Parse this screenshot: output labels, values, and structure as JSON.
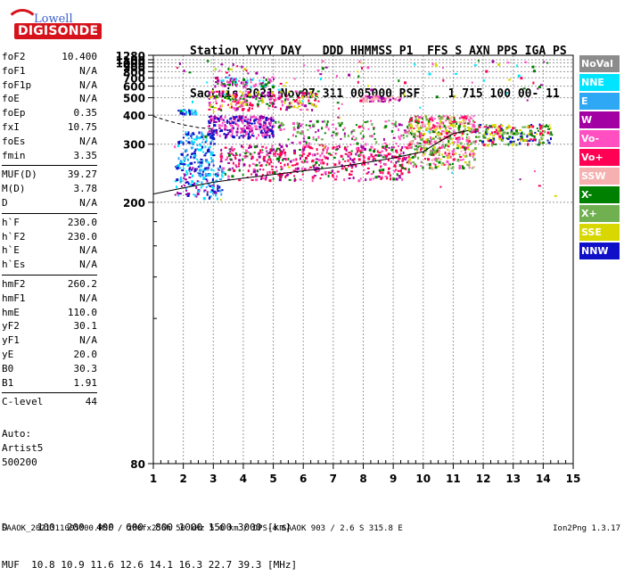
{
  "logo": {
    "line1": "Lowell",
    "line2": "DIGISONDE"
  },
  "header": {
    "line1": "Station YYYY DAY   DDD HHMMSS P1  FFS S AXN PPS IGA PS",
    "line2": "SaoLuis 2021 Nov07 311 005000 RSF    1 715 100 00- 11"
  },
  "params": [
    {
      "label": "foF2",
      "value": "10.400"
    },
    {
      "label": "foF1",
      "value": "N/A"
    },
    {
      "label": "foF1p",
      "value": "N/A"
    },
    {
      "label": "foE",
      "value": "N/A"
    },
    {
      "label": "foEp",
      "value": "0.35"
    },
    {
      "label": "fxI",
      "value": "10.75"
    },
    {
      "label": "foEs",
      "value": "N/A"
    },
    {
      "label": "fmin",
      "value": "3.35"
    },
    {
      "sep": true
    },
    {
      "label": "MUF(D)",
      "value": "39.27"
    },
    {
      "label": "M(D)",
      "value": "3.78"
    },
    {
      "label": "D",
      "value": "N/A"
    },
    {
      "sep": true
    },
    {
      "label": "h`F",
      "value": "230.0"
    },
    {
      "label": "h`F2",
      "value": "230.0"
    },
    {
      "label": "h`E",
      "value": "N/A"
    },
    {
      "label": "h`Es",
      "value": "N/A"
    },
    {
      "sep": true
    },
    {
      "label": "hmF2",
      "value": "260.2"
    },
    {
      "label": "hmF1",
      "value": "N/A"
    },
    {
      "label": "hmE",
      "value": "110.0"
    },
    {
      "label": "yF2",
      "value": "30.1"
    },
    {
      "label": "yF1",
      "value": "N/A"
    },
    {
      "label": "yE",
      "value": "20.0"
    },
    {
      "label": "B0",
      "value": "30.3"
    },
    {
      "label": "B1",
      "value": "1.91"
    },
    {
      "sep": true
    },
    {
      "label": "C-level",
      "value": "44"
    }
  ],
  "auto": {
    "line1": "Auto:",
    "line2": "Artist5",
    "line3": "500200"
  },
  "legend": [
    {
      "label": "NoVal",
      "color": "#8c8c8c"
    },
    {
      "label": "NNE",
      "color": "#00e5ff"
    },
    {
      "label": "E",
      "color": "#2ea8f5"
    },
    {
      "label": "W",
      "color": "#a300a3"
    },
    {
      "label": "Vo-",
      "color": "#ff4fc0"
    },
    {
      "label": "Vo+",
      "color": "#ff0055"
    },
    {
      "label": "SSW",
      "color": "#f5b0b0"
    },
    {
      "label": "X-",
      "color": "#008000"
    },
    {
      "label": "X+",
      "color": "#70b050"
    },
    {
      "label": "SSE",
      "color": "#d8d800"
    },
    {
      "label": "NNW",
      "color": "#1010c8"
    }
  ],
  "footer": {
    "line1": "D     100  200  400  600  800 1000 1500 3000 [km]",
    "line2": "MUF  10.8 10.9 11.6 12.6 14.1 16.3 22.7 39.3 [MHz]"
  },
  "fileline": "SAAOK_2021311005000.RSF / 280fx256h 50 kHz 5.0 km / DPS-4 SAAOK 903 / 2.6 S 315.8 E",
  "version": "Ion2Png 1.3.17",
  "chart_data": {
    "type": "scatter",
    "xlim": [
      1,
      15
    ],
    "ylim": [
      80,
      1280
    ],
    "yscale": "reciprocal",
    "x_ticks": [
      "1",
      "2",
      "3",
      "4",
      "5",
      "6",
      "7",
      "8",
      "9",
      "10",
      "11",
      "12",
      "13",
      "14",
      "15"
    ],
    "y_ticks": [
      "80",
      "200",
      "300",
      "400",
      "500",
      "600",
      "700",
      "800",
      "900",
      "1000",
      "1100",
      "1280"
    ],
    "grid": true,
    "clusters": [
      {
        "x": [
          1.7,
          3.3
        ],
        "y": [
          205,
          255
        ],
        "n": 160,
        "colors": [
          "#1010c8",
          "#00e5ff",
          "#2ea8f5",
          "#a300a3"
        ]
      },
      {
        "x": [
          1.8,
          3.0
        ],
        "y": [
          255,
          340
        ],
        "n": 140,
        "colors": [
          "#00e5ff",
          "#2ea8f5",
          "#1010c8"
        ]
      },
      {
        "x": [
          1.8,
          2.4
        ],
        "y": [
          410,
          430
        ],
        "n": 30,
        "colors": [
          "#2ea8f5",
          "#00e5ff",
          "#1010c8"
        ]
      },
      {
        "x": [
          2.8,
          5.0
        ],
        "y": [
          320,
          400
        ],
        "n": 260,
        "colors": [
          "#a300a3",
          "#ff4fc0",
          "#1010c8"
        ]
      },
      {
        "x": [
          3.2,
          9.5
        ],
        "y": [
          230,
          300
        ],
        "n": 520,
        "colors": [
          "#ff0055",
          "#ff4fc0",
          "#a300a3",
          "#008000",
          "#ff0055"
        ]
      },
      {
        "x": [
          2.8,
          6.5
        ],
        "y": [
          430,
          560
        ],
        "n": 240,
        "colors": [
          "#ff4fc0",
          "#a300a3",
          "#ff0055",
          "#008000",
          "#d8d800"
        ]
      },
      {
        "x": [
          3.0,
          5.0
        ],
        "y": [
          600,
          720
        ],
        "n": 80,
        "colors": [
          "#ff4fc0",
          "#a300a3",
          "#008000",
          "#00e5ff"
        ]
      },
      {
        "x": [
          5.0,
          9.5
        ],
        "y": [
          300,
          380
        ],
        "n": 140,
        "colors": [
          "#a300a3",
          "#ff4fc0",
          "#008000",
          "#70b050"
        ]
      },
      {
        "x": [
          7.8,
          9.2
        ],
        "y": [
          480,
          520
        ],
        "n": 60,
        "colors": [
          "#ff4fc0",
          "#a300a3",
          "#f5b0b0"
        ]
      },
      {
        "x": [
          9.5,
          11.7
        ],
        "y": [
          250,
          400
        ],
        "n": 480,
        "colors": [
          "#ff0055",
          "#f5b0b0",
          "#ff4fc0",
          "#008000",
          "#d8d800",
          "#70b050"
        ]
      },
      {
        "x": [
          11.7,
          14.3
        ],
        "y": [
          300,
          365
        ],
        "n": 200,
        "colors": [
          "#008000",
          "#70b050",
          "#d8d800",
          "#ff0055",
          "#1010c8"
        ]
      },
      {
        "x": [
          1.5,
          14.5
        ],
        "y": [
          200,
          1100
        ],
        "n": 120,
        "colors": [
          "#ff4fc0",
          "#a300a3",
          "#008000",
          "#d8d800",
          "#00e5ff",
          "#ff0055"
        ]
      }
    ],
    "trace_line": {
      "x": [
        1.0,
        2.0,
        3.0,
        4.0,
        5.0,
        6.0,
        7.0,
        8.0,
        9.0,
        10.0,
        10.4,
        11.0,
        11.5
      ],
      "y": [
        210,
        218,
        226,
        232,
        238,
        244,
        250,
        258,
        268,
        282,
        300,
        330,
        340
      ]
    },
    "trace_dashed": {
      "x": [
        1.0,
        1.5,
        2.0,
        2.5,
        3.0
      ],
      "y": [
        395,
        375,
        360,
        350,
        345
      ]
    }
  }
}
